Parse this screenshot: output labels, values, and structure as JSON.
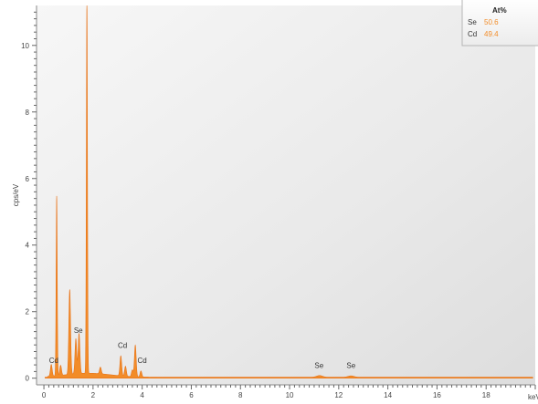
{
  "chart_data": {
    "type": "area",
    "title": "",
    "xlabel": "keV",
    "ylabel": "cps/eV",
    "xlim": [
      -0.3,
      20
    ],
    "ylim": [
      -0.2,
      11.2
    ],
    "x_ticks": [
      0,
      2,
      4,
      6,
      8,
      10,
      12,
      14,
      16,
      18
    ],
    "y_ticks": [
      0,
      2,
      4,
      6,
      8,
      10
    ],
    "grid": false,
    "legend_position": "top-right",
    "series_color": "#F28C28",
    "peaks": [
      {
        "x": 0.3,
        "y": 0.35
      },
      {
        "x": 0.52,
        "y": 5.4
      },
      {
        "x": 0.68,
        "y": 0.3
      },
      {
        "x": 1.05,
        "y": 2.55
      },
      {
        "x": 1.3,
        "y": 1.05
      },
      {
        "x": 1.43,
        "y": 1.2
      },
      {
        "x": 1.75,
        "y": 11.2
      },
      {
        "x": 2.3,
        "y": 0.2
      },
      {
        "x": 3.13,
        "y": 0.6
      },
      {
        "x": 3.32,
        "y": 0.3
      },
      {
        "x": 3.6,
        "y": 0.2
      },
      {
        "x": 3.72,
        "y": 0.95
      },
      {
        "x": 3.95,
        "y": 0.18
      },
      {
        "x": 11.22,
        "y": 0.05
      },
      {
        "x": 12.5,
        "y": 0.04
      }
    ],
    "annotations": [
      {
        "text": "Cd",
        "x": 0.4,
        "y": 0.35
      },
      {
        "text": "Se",
        "x": 1.4,
        "y": 1.25
      },
      {
        "text": "Cd",
        "x": 3.2,
        "y": 0.8
      },
      {
        "text": "Cd",
        "x": 4.0,
        "y": 0.35
      },
      {
        "text": "Se",
        "x": 11.2,
        "y": 0.2
      },
      {
        "text": "Se",
        "x": 12.5,
        "y": 0.2
      }
    ],
    "legend": {
      "header": "At%",
      "rows": [
        {
          "element": "Se",
          "value": "50.6"
        },
        {
          "element": "Cd",
          "value": "49.4"
        }
      ]
    }
  }
}
